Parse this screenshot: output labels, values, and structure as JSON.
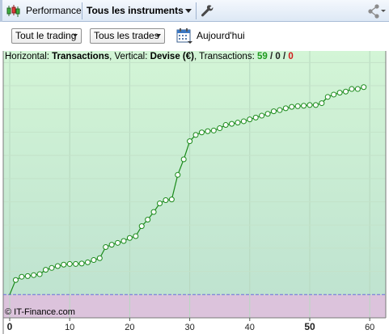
{
  "toolbar": {
    "performance_label": "Performance",
    "instruments_label": "Tous les instruments",
    "icons": [
      "candlestick-chart-icon",
      "wrench-icon",
      "share-icon",
      "calendar-icon"
    ]
  },
  "filters": {
    "trading_select": "Tout le trading",
    "trades_select": "Tous les trades",
    "today_label": "Aujourd'hui"
  },
  "info": {
    "horizontal_prefix": "Horizontal:",
    "horizontal_value": "Transactions",
    "vertical_prefix": ", Vertical:",
    "vertical_value": "Devise (€)",
    "transactions_prefix": ", Transactions:",
    "trades_count": "59",
    "sep1": " / ",
    "count_zero_1": "0",
    "sep2": " / ",
    "count_zero_2": "0"
  },
  "copyright": "© IT-Finance.com",
  "colors": {
    "positive_bg": "#cdefd2",
    "negative_bg": "#dcc3dc",
    "line": "#1a8a1a",
    "marker_fill": "#ffffff",
    "zero_line": "#6a6adf"
  },
  "chart_data": {
    "type": "line",
    "title": "",
    "xlabel": "",
    "ylabel": "",
    "x_ticks": [
      0,
      10,
      20,
      30,
      40,
      50,
      60
    ],
    "bold_ticks": [
      0,
      50
    ],
    "xlim": [
      0,
      62
    ],
    "ylim": [
      -1.0,
      10.5
    ],
    "grid": true,
    "legend": "none",
    "series": [
      {
        "x": [
          0,
          1,
          2,
          3,
          4,
          5,
          6,
          7,
          8,
          9,
          10,
          11,
          12,
          13,
          14,
          15,
          16,
          17,
          18,
          19,
          20,
          21,
          22,
          23,
          24,
          25,
          26,
          27,
          28,
          29,
          30,
          31,
          32,
          33,
          34,
          35,
          36,
          37,
          38,
          39,
          40,
          41,
          42,
          43,
          44,
          45,
          46,
          47,
          48,
          49,
          50,
          51,
          52,
          53,
          54,
          55,
          56,
          57,
          58,
          59
        ],
        "y": [
          0.0,
          0.63,
          0.77,
          0.8,
          0.84,
          0.88,
          1.07,
          1.15,
          1.23,
          1.29,
          1.32,
          1.32,
          1.34,
          1.39,
          1.49,
          1.57,
          2.05,
          2.15,
          2.23,
          2.31,
          2.44,
          2.52,
          2.95,
          3.23,
          3.56,
          3.93,
          4.07,
          4.1,
          5.16,
          5.83,
          6.61,
          6.88,
          6.99,
          7.04,
          7.07,
          7.17,
          7.31,
          7.36,
          7.41,
          7.47,
          7.55,
          7.63,
          7.71,
          7.79,
          7.9,
          7.95,
          8.03,
          8.09,
          8.12,
          8.14,
          8.17,
          8.17,
          8.25,
          8.52,
          8.62,
          8.7,
          8.75,
          8.86,
          8.86,
          8.94
        ]
      }
    ]
  }
}
